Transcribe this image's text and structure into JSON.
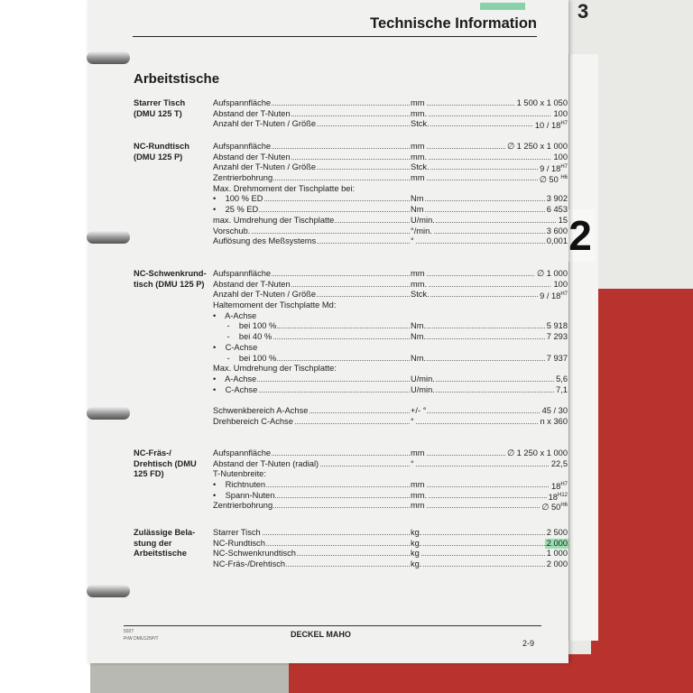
{
  "header": {
    "title": "Technische Information"
  },
  "tab_number": "2",
  "page_title": "Arbeitstische",
  "sections": [
    {
      "title": "Starrer Tisch (DMU 125 T)",
      "rows": [
        {
          "label": "Aufspannfläche",
          "unit": "mm",
          "value": "1 500 x 1 050"
        },
        {
          "label": "Abstand der T-Nuten",
          "unit": "mm.",
          "value": "100"
        },
        {
          "label": "Anzahl der T-Nuten / Größe",
          "unit": "Stck.",
          "value": "10 / 18",
          "sup": "H7"
        }
      ]
    },
    {
      "title": "NC-Rundtisch (DMU 125 P)",
      "rows": [
        {
          "label": "Aufspannfläche",
          "unit": "mm",
          "value": "∅ 1 250 x 1 000"
        },
        {
          "label": "Abstand der T-Nuten",
          "unit": "mm.",
          "value": "100"
        },
        {
          "label": "Anzahl der T-Nuten / Größe",
          "unit": "Stck.",
          "value": "9 / 18",
          "sup": "H7"
        },
        {
          "label": "Zentrierbohrung",
          "unit": "mm",
          "value": "∅ 50 ",
          "sup": "H6"
        },
        {
          "label": "Max. Drehmoment der Tischplatte bei:",
          "nodots": true
        },
        {
          "label": "•    100 % ED",
          "unit": "Nm",
          "value": "3 902"
        },
        {
          "label": "•    25 % ED",
          "unit": "Nm",
          "value": "6 453"
        },
        {
          "label": "max. Umdrehung der Tischplatte",
          "unit": "U/min.",
          "value": "15"
        },
        {
          "label": "Vorschub.",
          "unit": "°/min.",
          "value": "3 600"
        },
        {
          "label": "Auflösung des Meßsystems",
          "unit": "°",
          "value": "0,001"
        }
      ]
    },
    {
      "title": "NC-Schwenkrund-tisch (DMU 125 P)",
      "rows": [
        {
          "label": "Aufspannfläche",
          "unit": "mm",
          "value": "∅ 1 000"
        },
        {
          "label": "Abstand der T-Nuten",
          "unit": "mm.",
          "value": "100"
        },
        {
          "label": "Anzahl der T-Nuten / Größe",
          "unit": "Stck.",
          "value": "9 / 18",
          "sup": "H7"
        },
        {
          "label": "Haltemoment der Tischplatte Md:",
          "nodots": true
        },
        {
          "label": "•    A-Achse",
          "nodots": true
        },
        {
          "label": "      -    bei 100 %",
          "unit": "Nm.",
          "value": "5 918"
        },
        {
          "label": "      -    bei 40 %",
          "unit": "Nm.",
          "value": "7 293"
        },
        {
          "label": "•    C-Achse",
          "nodots": true
        },
        {
          "label": "      -    bei 100 %",
          "unit": "Nm.",
          "value": "7 937"
        },
        {
          "label": "Max. Umdrehung der Tischplatte:",
          "nodots": true
        },
        {
          "label": "•    A-Achse",
          "unit": "U/min.",
          "value": "5,6"
        },
        {
          "label": "•    C-Achse",
          "unit": "U/min.",
          "value": "7,1"
        },
        {
          "label": "",
          "nodots": true
        },
        {
          "label": "Schwenkbereich A-Achse",
          "unit": "+/- °",
          "value": "45 / 30"
        },
        {
          "label": "Drehbereich C-Achse",
          "unit": "°",
          "value": "n x 360"
        }
      ]
    },
    {
      "title": "NC-Fräs-/ Drehtisch (DMU 125 FD)",
      "rows": [
        {
          "label": "Aufspannfläche",
          "unit": "mm",
          "value": "∅ 1 250 x 1 000"
        },
        {
          "label": "Abstand der T-Nuten (radial)",
          "unit": "°",
          "value": "22,5"
        },
        {
          "label": "T-Nutenbreite:",
          "nodots": true
        },
        {
          "label": "•    Richtnuten",
          "unit": "mm",
          "value": "18",
          "sup": "H7"
        },
        {
          "label": "•    Spann-Nuten",
          "unit": "mm.",
          "value": "18",
          "sup": "H12"
        },
        {
          "label": "Zentrierbohrung",
          "unit": "mm",
          "value": "∅ 50",
          "sup": "H6"
        }
      ]
    },
    {
      "title": "Zulässige Bela-stung der Arbeitstische",
      "rows": [
        {
          "label": "Starrer Tisch",
          "unit": "kg.",
          "value": "2 500"
        },
        {
          "label": "NC-Rundtisch",
          "unit": "kg.",
          "value": "2 000",
          "highlight": true
        },
        {
          "label": "NC-Schwenkrundtisch",
          "unit": "kg",
          "value": "1 000"
        },
        {
          "label": "NC-Fräs-/Drehtisch",
          "unit": "kg.",
          "value": "2 000"
        }
      ]
    }
  ],
  "footer": {
    "code1": "5027",
    "code2": "PrW DMU125P/T",
    "brand": "DECKEL MAHO",
    "page": "2-9"
  },
  "colors": {
    "highlight": "#5dc48b",
    "binder_red": "#b8332d"
  }
}
